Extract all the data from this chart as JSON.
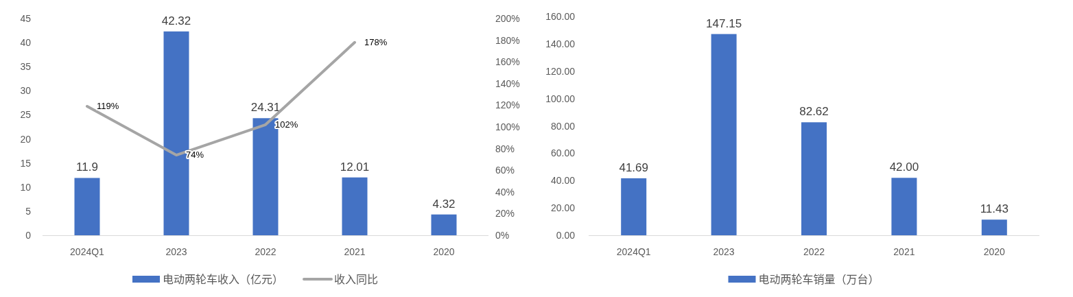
{
  "chart_data": [
    {
      "type": "bar",
      "categories": [
        "2024Q1",
        "2023",
        "2022",
        "2021",
        "2020"
      ],
      "series": [
        {
          "name": "电动两轮车收入（亿元）",
          "color": "#4472c4",
          "values": [
            11.9,
            42.32,
            24.31,
            12.01,
            4.32
          ]
        },
        {
          "name": "收入同比",
          "type": "line",
          "axis": "y2",
          "color": "#a5a5a5",
          "values": [
            119,
            74,
            102,
            178,
            null
          ],
          "value_labels": [
            "119%",
            "74%",
            "102%",
            "178%",
            null
          ]
        }
      ],
      "data_labels": true,
      "ylim": [
        0,
        45
      ],
      "yticks": [
        0,
        5,
        10,
        15,
        20,
        25,
        30,
        35,
        40,
        45
      ],
      "y2lim": [
        0,
        200
      ],
      "y2ticks": [
        {
          "value": 0,
          "label": "0%"
        },
        {
          "value": 20,
          "label": "20%"
        },
        {
          "value": 40,
          "label": "40%"
        },
        {
          "value": 60,
          "label": "60%"
        },
        {
          "value": 80,
          "label": "80%"
        },
        {
          "value": 100,
          "label": "100%"
        },
        {
          "value": 120,
          "label": "120%"
        },
        {
          "value": 140,
          "label": "140%"
        },
        {
          "value": 160,
          "label": "160%"
        },
        {
          "value": 180,
          "label": "180%"
        },
        {
          "value": 200,
          "label": "200%"
        }
      ],
      "grid": false,
      "legend": "bottom",
      "marker": "none",
      "line_style": "solid"
    },
    {
      "type": "bar",
      "categories": [
        "2024Q1",
        "2023",
        "2022",
        "2021",
        "2020"
      ],
      "series": [
        {
          "name": "电动两轮车销量（万台）",
          "color": "#4472c4",
          "values": [
            41.69,
            147.15,
            82.62,
            42.0,
            11.43
          ],
          "value_labels": [
            "41.69",
            "147.15",
            "82.62",
            "42.00",
            "11.43"
          ]
        }
      ],
      "ylim": [
        0,
        160
      ],
      "yticks": [
        {
          "value": 0,
          "label": "0.00"
        },
        {
          "value": 20,
          "label": "20.00"
        },
        {
          "value": 40,
          "label": "40.00"
        },
        {
          "value": 60,
          "label": "60.00"
        },
        {
          "value": 80,
          "label": "80.00"
        },
        {
          "value": 100,
          "label": "100.00"
        },
        {
          "value": 120,
          "label": "120.00"
        },
        {
          "value": 140,
          "label": "140.00"
        },
        {
          "value": 160,
          "label": "160.00"
        }
      ],
      "grid": false,
      "legend": "bottom"
    }
  ]
}
